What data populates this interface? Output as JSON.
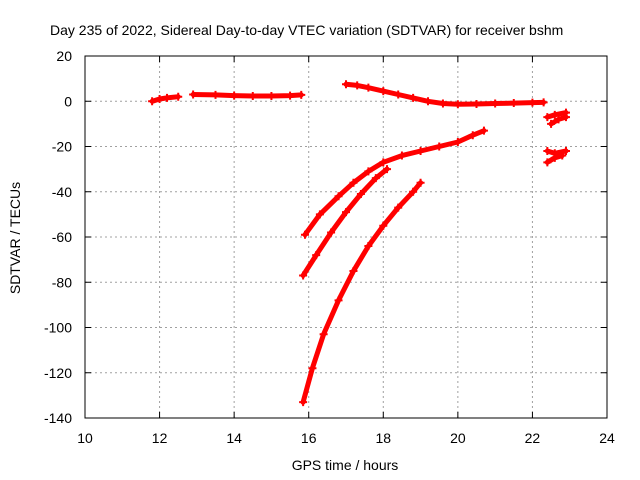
{
  "chart_data": {
    "type": "line",
    "title": "Day 235 of 2022, Sidereal Day-to-day VTEC variation (SDTVAR) for receiver bshm",
    "xlabel": "GPS time / hours",
    "ylabel": "SDTVAR / TECUs",
    "xlim": [
      10,
      24
    ],
    "ylim": [
      -140,
      20
    ],
    "xticks": [
      10,
      12,
      14,
      16,
      18,
      20,
      22,
      24
    ],
    "yticks": [
      20,
      0,
      -20,
      -40,
      -60,
      -80,
      -100,
      -120,
      -140
    ],
    "grid": true,
    "legend": "none",
    "series_color": "#ff0000",
    "series": [
      {
        "x": [
          11.8,
          12.0,
          12.2,
          12.5
        ],
        "y": [
          0,
          1,
          1.5,
          2
        ]
      },
      {
        "x": [
          12.9,
          13.5,
          14.0,
          14.5,
          15.0,
          15.5,
          15.8
        ],
        "y": [
          3,
          2.8,
          2.5,
          2.3,
          2.3,
          2.5,
          2.8
        ]
      },
      {
        "x": [
          17.0,
          17.3,
          17.6,
          18.0,
          18.4,
          18.8,
          19.2,
          19.6,
          20.0,
          20.5,
          21.0,
          21.5,
          22.0,
          22.3
        ],
        "y": [
          7.5,
          7,
          6,
          4.5,
          3,
          1.5,
          0,
          -1,
          -1.3,
          -1.2,
          -1,
          -0.8,
          -0.6,
          -0.5
        ]
      },
      {
        "x": [
          22.4,
          22.6,
          22.9
        ],
        "y": [
          -7,
          -6,
          -5
        ]
      },
      {
        "x": [
          22.5,
          22.7,
          22.9
        ],
        "y": [
          -10,
          -8,
          -7
        ]
      },
      {
        "x": [
          22.4,
          22.6,
          22.9
        ],
        "y": [
          -22,
          -23,
          -22
        ]
      },
      {
        "x": [
          22.4,
          22.6,
          22.8
        ],
        "y": [
          -27,
          -25,
          -24
        ]
      },
      {
        "x": [
          15.9,
          16.3,
          16.8,
          17.2,
          17.6,
          18.0,
          18.5,
          19.0,
          19.5,
          20.0,
          20.4,
          20.7
        ],
        "y": [
          -59,
          -50,
          -42,
          -36,
          -31,
          -27,
          -24,
          -22,
          -20,
          -18,
          -15,
          -13
        ]
      },
      {
        "x": [
          15.85,
          16.2,
          16.6,
          17.0,
          17.4,
          17.8,
          18.1
        ],
        "y": [
          -77,
          -68,
          -58,
          -49,
          -41,
          -34,
          -30
        ]
      },
      {
        "x": [
          15.85,
          16.1,
          16.4,
          16.8,
          17.2,
          17.6,
          18.0,
          18.4,
          18.8,
          19.0
        ],
        "y": [
          -133,
          -118,
          -103,
          -88,
          -75,
          -64,
          -55,
          -47,
          -40,
          -36
        ]
      }
    ]
  }
}
